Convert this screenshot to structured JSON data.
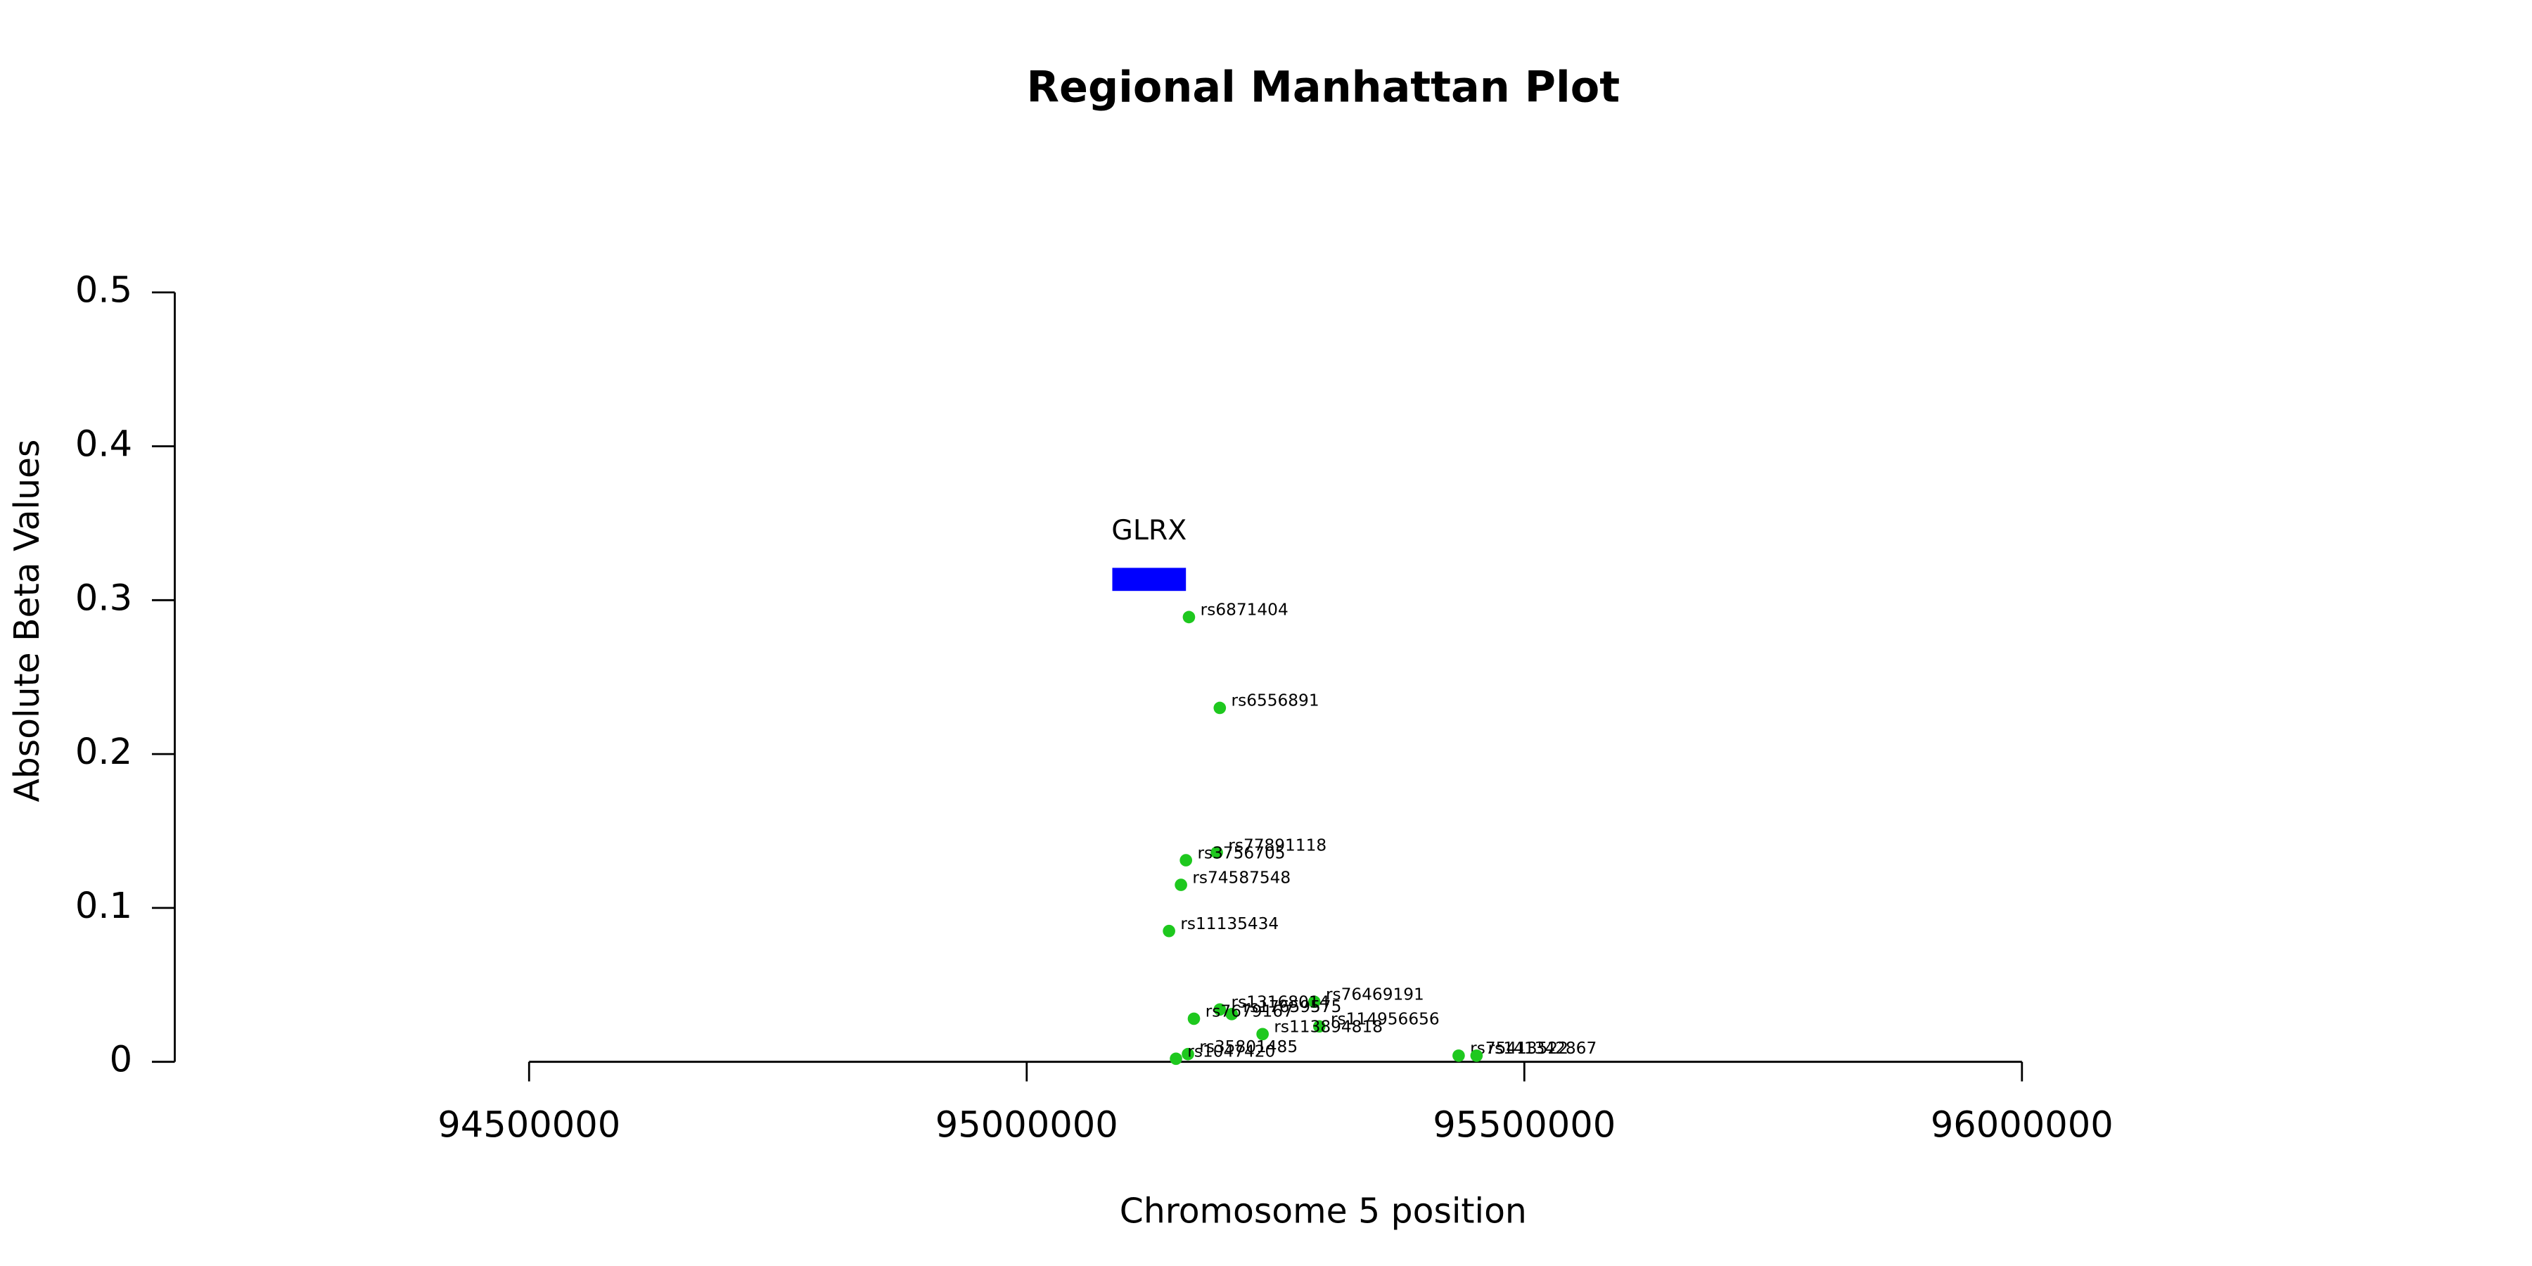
{
  "chart_data": {
    "type": "scatter",
    "title": "Regional Manhattan Plot",
    "x_label": "Chromosome 5 position",
    "y_label": "Absolute Beta Values",
    "xlim": [
      94144000,
      96350000
    ],
    "xticks": [
      94500000,
      95000000,
      95500000,
      96000000
    ],
    "ylim": [
      0,
      0.5
    ],
    "yticks": [
      0,
      0.1,
      0.2,
      0.3,
      0.4,
      0.5
    ],
    "color": "#1ec81e",
    "points": [
      {
        "label": "rs6871404",
        "x": 95163000,
        "y": 0.289
      },
      {
        "label": "rs6556891",
        "x": 95194000,
        "y": 0.23
      },
      {
        "label": "rs77891118",
        "x": 95191000,
        "y": 0.136
      },
      {
        "label": "rs3756705",
        "x": 95160000,
        "y": 0.131
      },
      {
        "label": "rs74587548",
        "x": 95155000,
        "y": 0.115
      },
      {
        "label": "rs11135434",
        "x": 95143000,
        "y": 0.085
      },
      {
        "label": "rs76469191",
        "x": 95289000,
        "y": 0.039
      },
      {
        "label": "rs13168014",
        "x": 95194000,
        "y": 0.034
      },
      {
        "label": "rs17659575",
        "x": 95206000,
        "y": 0.031
      },
      {
        "label": "rs7679167",
        "x": 95168000,
        "y": 0.028
      },
      {
        "label": "rs114956656",
        "x": 95294000,
        "y": 0.023
      },
      {
        "label": "rs113894818",
        "x": 95237000,
        "y": 0.018
      },
      {
        "label": "rs35801485",
        "x": 95162000,
        "y": 0.005
      },
      {
        "label": "rs1047420",
        "x": 95150000,
        "y": 0.002
      },
      {
        "label": "rs75413522",
        "x": 95434000,
        "y": 0.004
      },
      {
        "label": "rs141342867",
        "x": 95452000,
        "y": 0.004
      }
    ],
    "genes": [
      {
        "name": "GLRX",
        "start": 95086000,
        "end": 95160000,
        "ymin": 0.306,
        "ymax": 0.321,
        "color": "#0000ff"
      }
    ]
  }
}
